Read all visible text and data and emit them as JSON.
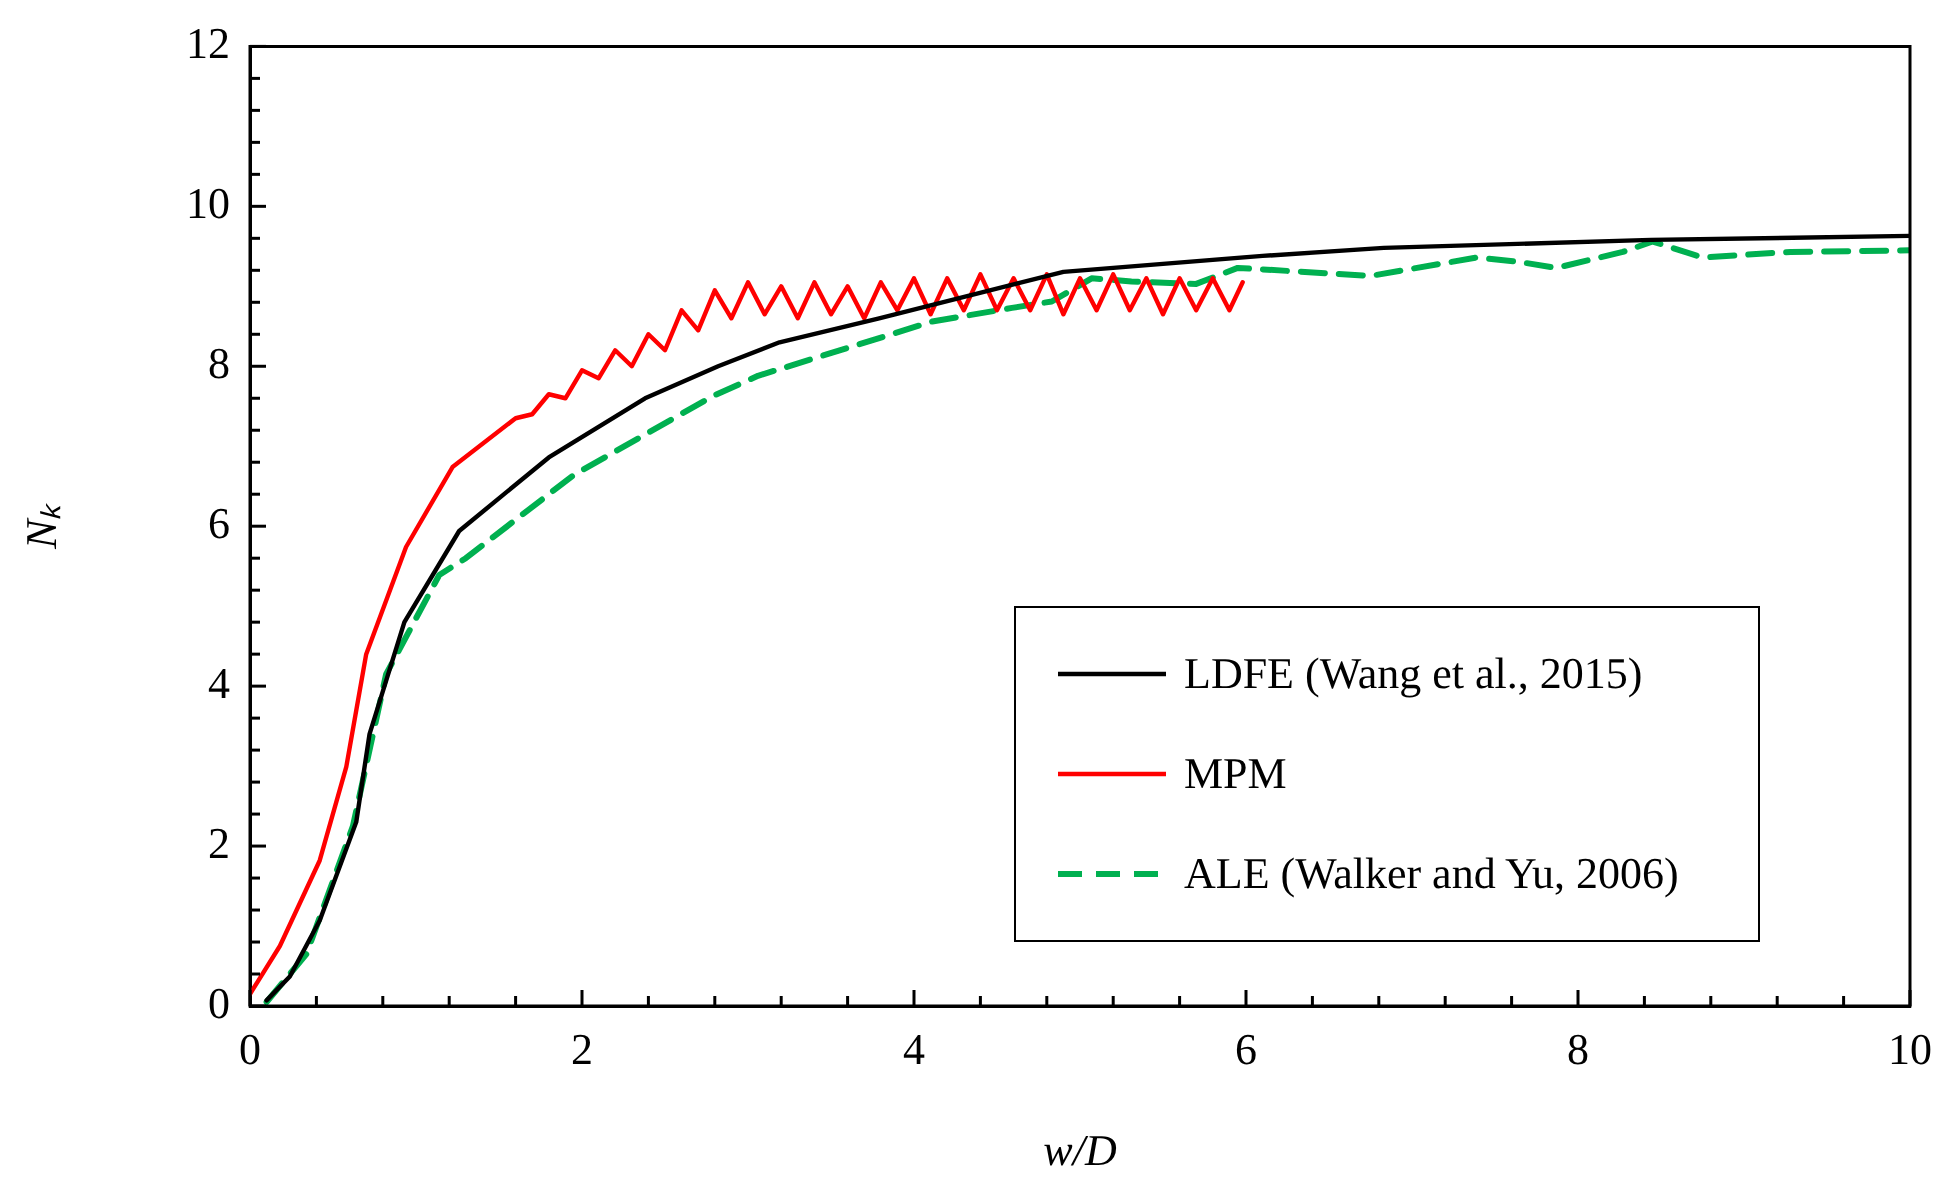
{
  "chart_data": {
    "type": "line",
    "xlabel": "w/D",
    "ylabel": "Nₖ",
    "xlim": [
      0,
      10
    ],
    "ylim": [
      0,
      12
    ],
    "xticks": [
      0,
      {
        "value": 0.4,
        "label": null
      },
      {
        "value": 0.8,
        "label": null
      },
      {
        "value": 1.2,
        "label": null
      },
      {
        "value": 1.6,
        "label": null
      },
      2,
      {
        "value": 2.4,
        "label": null
      },
      {
        "value": 2.8,
        "label": null
      },
      {
        "value": 3.2,
        "label": null
      },
      {
        "value": 3.6,
        "label": null
      },
      4,
      {
        "value": 4.4,
        "label": null
      },
      {
        "value": 4.8,
        "label": null
      },
      {
        "value": 5.2,
        "label": null
      },
      {
        "value": 5.6,
        "label": null
      },
      6,
      {
        "value": 6.4,
        "label": null
      },
      {
        "value": 6.8,
        "label": null
      },
      {
        "value": 7.2,
        "label": null
      },
      {
        "value": 7.6,
        "label": null
      },
      8,
      {
        "value": 8.4,
        "label": null
      },
      {
        "value": 8.8,
        "label": null
      },
      {
        "value": 9.2,
        "label": null
      },
      {
        "value": 9.6,
        "label": null
      },
      10
    ],
    "yticks": [
      0,
      {
        "value": 0.4,
        "label": null
      },
      {
        "value": 0.8,
        "label": null
      },
      {
        "value": 1.2,
        "label": null
      },
      {
        "value": 1.6,
        "label": null
      },
      2,
      {
        "value": 2.4,
        "label": null
      },
      {
        "value": 2.8,
        "label": null
      },
      {
        "value": 3.2,
        "label": null
      },
      {
        "value": 3.6,
        "label": null
      },
      4,
      {
        "value": 4.4,
        "label": null
      },
      {
        "value": 4.8,
        "label": null
      },
      {
        "value": 5.2,
        "label": null
      },
      {
        "value": 5.6,
        "label": null
      },
      6,
      {
        "value": 6.4,
        "label": null
      },
      {
        "value": 6.8,
        "label": null
      },
      {
        "value": 7.2,
        "label": null
      },
      {
        "value": 7.6,
        "label": null
      },
      8,
      {
        "value": 8.4,
        "label": null
      },
      {
        "value": 8.8,
        "label": null
      },
      {
        "value": 9.2,
        "label": null
      },
      {
        "value": 9.6,
        "label": null
      },
      10,
      {
        "value": 10.4,
        "label": null
      },
      {
        "value": 10.8,
        "label": null
      },
      {
        "value": 11.2,
        "label": null
      },
      {
        "value": 11.6,
        "label": null
      },
      12
    ],
    "legend": "bottom right",
    "marker": "none",
    "series": [
      {
        "name": "LDFE (Wang et al., 2015)",
        "color": "#000000",
        "line_style": "solid",
        "x": [
          0.1,
          0.24,
          0.42,
          0.64,
          0.72,
          0.93,
          1.26,
          1.8,
          2.38,
          2.82,
          3.19,
          3.79,
          4.9,
          6.1,
          6.83,
          8.44,
          10
        ],
        "values": [
          0.07,
          0.37,
          1.07,
          2.3,
          3.4,
          4.8,
          5.94,
          6.86,
          7.6,
          8.0,
          8.3,
          8.6,
          9.18,
          9.38,
          9.48,
          9.58,
          9.63
        ]
      },
      {
        "name": "MPM",
        "color": "#ff0000",
        "line_style": "solid",
        "x": [
          0,
          0.18,
          0.42,
          0.58,
          0.7,
          0.94,
          1.22,
          1.6,
          1.7,
          1.8,
          1.9,
          2.0,
          2.1,
          2.2,
          2.3,
          2.4,
          2.5,
          2.6,
          2.7,
          2.8,
          2.9,
          3.0,
          3.1,
          3.2,
          3.3,
          3.4,
          3.5,
          3.6,
          3.7,
          3.8,
          3.9,
          4.0,
          4.1,
          4.2,
          4.3,
          4.4,
          4.5,
          4.6,
          4.7,
          4.8,
          4.9,
          5.0,
          5.1,
          5.2,
          5.3,
          5.4,
          5.5,
          5.6,
          5.7,
          5.8,
          5.9,
          5.98
        ],
        "values": [
          0.15,
          0.75,
          1.82,
          2.99,
          4.4,
          5.74,
          6.74,
          7.35,
          7.4,
          7.65,
          7.6,
          7.95,
          7.85,
          8.2,
          8.0,
          8.4,
          8.2,
          8.7,
          8.45,
          8.95,
          8.6,
          9.05,
          8.65,
          9.0,
          8.6,
          9.05,
          8.65,
          9.0,
          8.6,
          9.05,
          8.7,
          9.1,
          8.65,
          9.1,
          8.7,
          9.15,
          8.7,
          9.1,
          8.7,
          9.15,
          8.65,
          9.1,
          8.7,
          9.15,
          8.7,
          9.1,
          8.65,
          9.1,
          8.7,
          9.1,
          8.7,
          9.05
        ]
      },
      {
        "name": "ALE (Walker and Yu, 2006)",
        "color": "#00b050",
        "line_style": "dashed",
        "x": [
          0.1,
          0.34,
          0.62,
          0.82,
          1.14,
          1.3,
          1.95,
          2.79,
          3.06,
          4.11,
          4.59,
          4.83,
          5.07,
          5.31,
          5.7,
          5.95,
          6.75,
          7.39,
          7.63,
          7.87,
          8.27,
          8.45,
          8.75,
          9.28,
          10
        ],
        "values": [
          0.05,
          0.65,
          2.25,
          4.15,
          5.39,
          5.6,
          6.64,
          7.63,
          7.88,
          8.56,
          8.73,
          8.81,
          9.1,
          9.06,
          9.03,
          9.23,
          9.13,
          9.36,
          9.31,
          9.23,
          9.43,
          9.56,
          9.36,
          9.43,
          9.45
        ]
      }
    ]
  }
}
